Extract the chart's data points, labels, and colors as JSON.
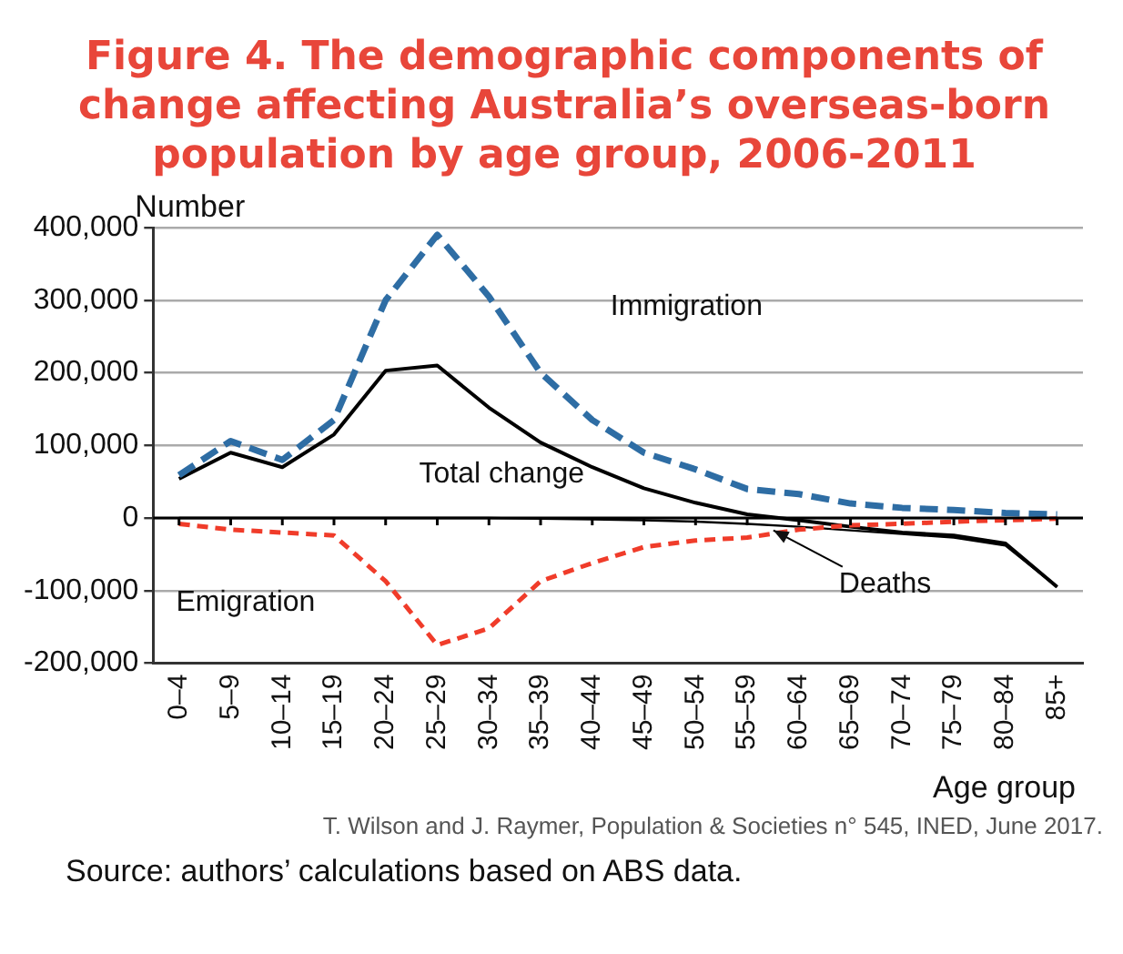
{
  "chart_data": {
    "type": "line",
    "title": "Figure 4. The demographic components of change affecting Australia’s overseas-born population by age group, 2006-2011",
    "xlabel": "Age group",
    "ylabel": "Number",
    "categories": [
      "0–4",
      "5–9",
      "10–14",
      "15–19",
      "20–24",
      "25–29",
      "30–34",
      "35–39",
      "40–44",
      "45–49",
      "50–54",
      "55–59",
      "60–64",
      "65–69",
      "70–74",
      "75–79",
      "80–84",
      "85+"
    ],
    "series": [
      {
        "name": "Immigration",
        "color": "#2e6da4",
        "line_style": "dashed",
        "values": [
          59000,
          106000,
          80000,
          135000,
          300000,
          390000,
          305000,
          200000,
          135000,
          90000,
          67000,
          40000,
          33000,
          20000,
          14000,
          11000,
          7000,
          5000
        ]
      },
      {
        "name": "Emigration",
        "color": "#f03c2a",
        "line_style": "dotted",
        "values": [
          -8000,
          -16000,
          -20000,
          -24000,
          -87000,
          -175000,
          -152000,
          -87000,
          -62000,
          -40000,
          -31000,
          -27000,
          -16000,
          -10000,
          -8000,
          -5000,
          -3000,
          -1000
        ]
      },
      {
        "name": "Total change",
        "color": "#000000",
        "line_style": "solid",
        "values": [
          54000,
          90000,
          70000,
          115000,
          203000,
          210000,
          152000,
          104000,
          70000,
          41000,
          21000,
          5000,
          -3000,
          -12000,
          -20000,
          -24000,
          -35000,
          -95000
        ]
      },
      {
        "name": "Deaths",
        "color": "#000000",
        "line_style": "solid",
        "values": [
          0,
          0,
          0,
          0,
          0,
          0,
          0,
          -1000,
          -2000,
          -3000,
          -5000,
          -8000,
          -12000,
          -17000,
          -22000,
          -27000,
          -38000,
          -95000
        ]
      }
    ],
    "ylim": [
      -200000,
      400000
    ],
    "yticks": [
      {
        "value": -200000,
        "label": "-200,000"
      },
      {
        "value": -100000,
        "label": "-100,000"
      },
      {
        "value": 0,
        "label": "0"
      },
      {
        "value": 100000,
        "label": "100,000"
      },
      {
        "value": 200000,
        "label": "200,000"
      },
      {
        "value": 300000,
        "label": "300,000"
      },
      {
        "value": 400000,
        "label": "400,000"
      }
    ],
    "grid": "y",
    "legend": false,
    "marker": "none",
    "annotations": [
      "T. Wilson and J. Raymer, Population & Societies n° 545, INED, June 2017.",
      "Source: authors’ calculations based on ABS data."
    ]
  }
}
